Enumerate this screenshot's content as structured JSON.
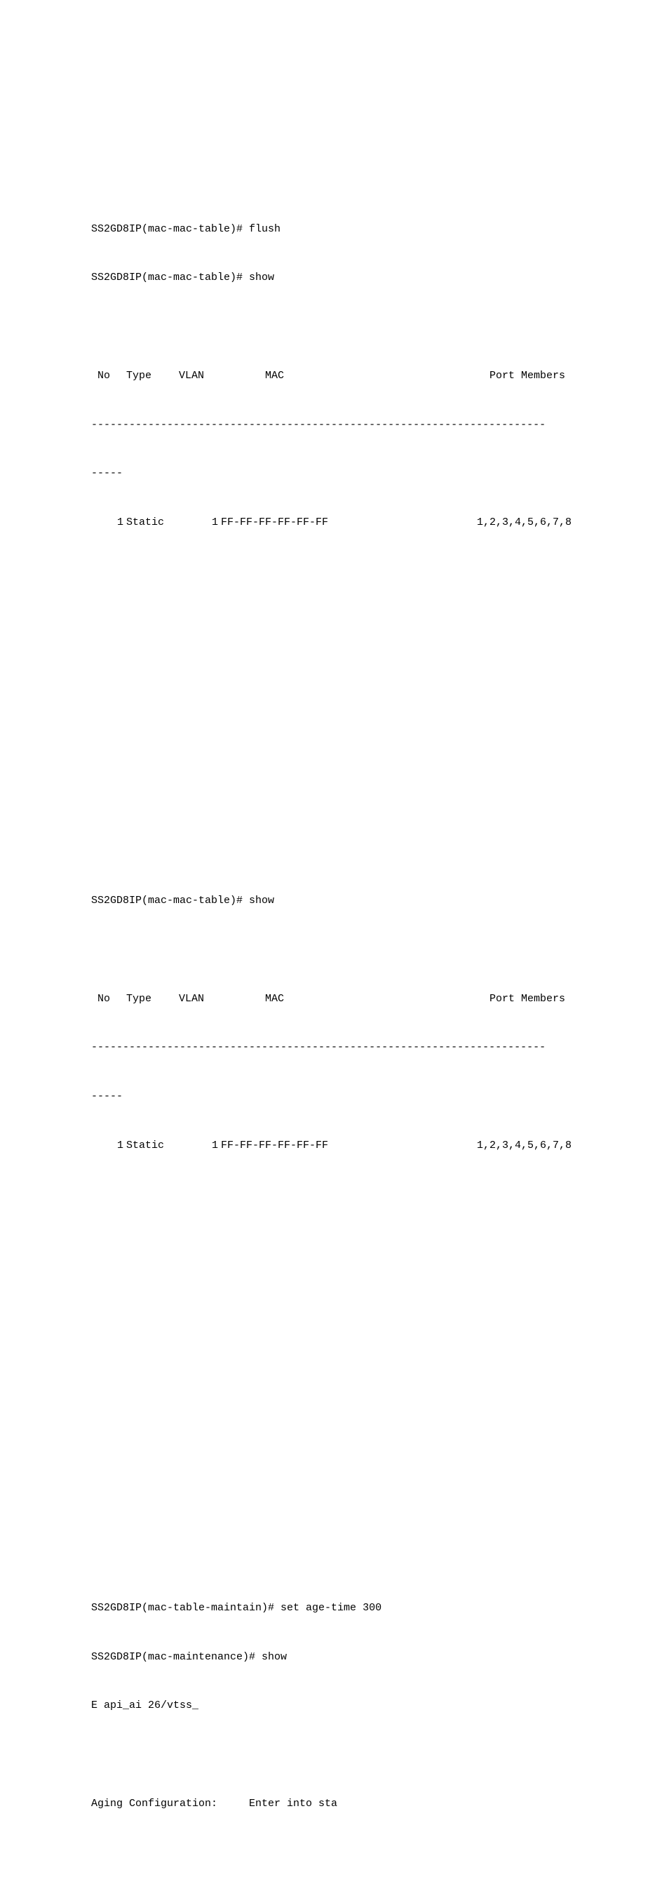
{
  "section1": {
    "line1": "SS2GD8IP(mac-mac-table)# flush",
    "line2": "SS2GD8IP(mac-mac-table)# show",
    "hdr": {
      "no": " No",
      "type": "Type",
      "vlan": "VLAN",
      "mac": "       MAC",
      "port": "  Port Members"
    },
    "rule1": "------------------------------------------------------------------------",
    "rule2": "-----",
    "row": {
      "no": "1",
      "type": "Static",
      "vlan": "1",
      "mac": "FF-FF-FF-FF-FF-FF",
      "port": "1,2,3,4,5,6,7,8"
    }
  },
  "section2": {
    "line1": "SS2GD8IP(mac-mac-table)# show",
    "hdr": {
      "no": " No",
      "type": "Type",
      "vlan": "VLAN",
      "mac": "       MAC",
      "port": "  Port Members"
    },
    "rule1": "------------------------------------------------------------------------",
    "rule2": "-----",
    "row": {
      "no": "1",
      "type": "Static",
      "vlan": "1",
      "mac": "FF-FF-FF-FF-FF-FF",
      "port": "1,2,3,4,5,6,7,8"
    }
  },
  "section3": {
    "line1": "SS2GD8IP(mac-table-maintain)# set age-time 300",
    "line2": "SS2GD8IP(mac-maintenance)# show",
    "line3": "E api_ai 26/vtss_",
    "blank": "",
    "line4": "Aging Configuration:     Enter into sta"
  }
}
